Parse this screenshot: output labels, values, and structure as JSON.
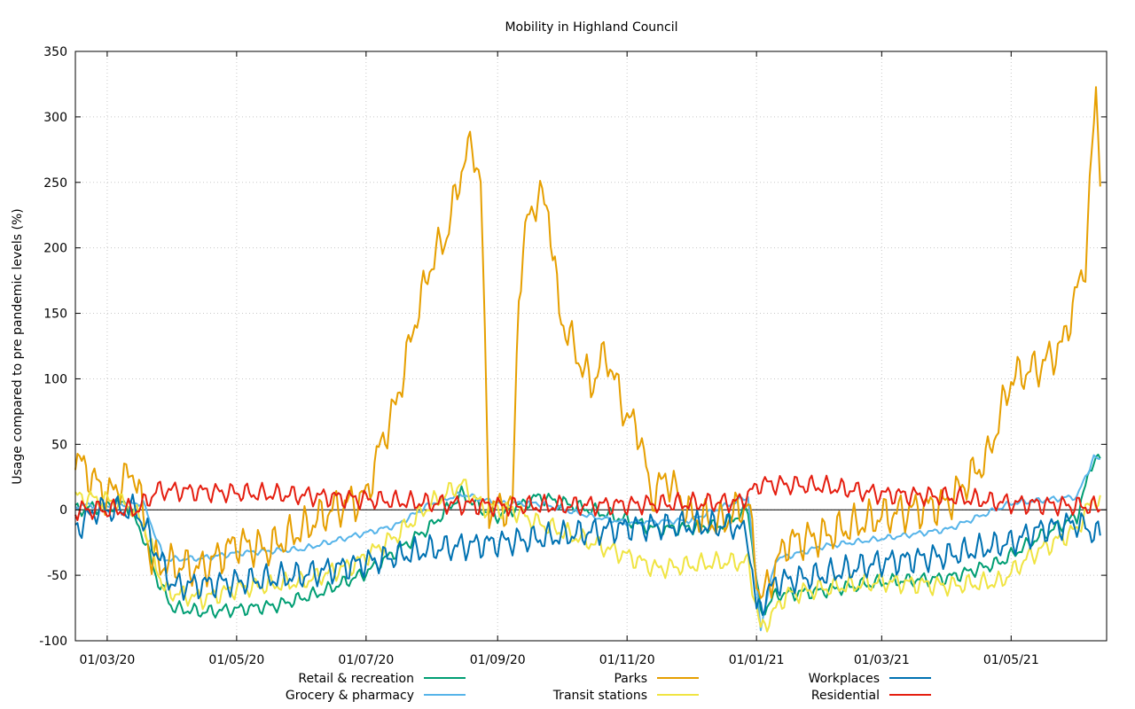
{
  "chart_data": {
    "type": "line",
    "title": "Mobility in Highland Council",
    "xlabel": "",
    "ylabel": "Usage compared to pre pandemic levels (%)",
    "x_range": [
      "2020-02-15",
      "2021-06-15"
    ],
    "x_ticks": [
      {
        "date": "2020-03-01",
        "label": "01/03/20"
      },
      {
        "date": "2020-05-01",
        "label": "01/05/20"
      },
      {
        "date": "2020-07-01",
        "label": "01/07/20"
      },
      {
        "date": "2020-09-01",
        "label": "01/09/20"
      },
      {
        "date": "2020-11-01",
        "label": "01/11/20"
      },
      {
        "date": "2021-01-01",
        "label": "01/01/21"
      },
      {
        "date": "2021-03-01",
        "label": "01/03/21"
      },
      {
        "date": "2021-05-01",
        "label": "01/05/21"
      }
    ],
    "ylim": [
      -100,
      350
    ],
    "y_ticks": [
      -100,
      -50,
      0,
      50,
      100,
      150,
      200,
      250,
      300,
      350
    ],
    "grid": true,
    "zero_line": true,
    "legend_position": "bottom",
    "series": [
      {
        "name": "Retail & recreation",
        "color": "#009e73",
        "weekly_amplitude": 7,
        "points": [
          [
            "2020-02-15",
            0
          ],
          [
            "2020-03-10",
            5
          ],
          [
            "2020-03-18",
            -20
          ],
          [
            "2020-03-25",
            -55
          ],
          [
            "2020-04-01",
            -75
          ],
          [
            "2020-04-15",
            -78
          ],
          [
            "2020-05-01",
            -76
          ],
          [
            "2020-05-20",
            -73
          ],
          [
            "2020-06-10",
            -63
          ],
          [
            "2020-07-01",
            -48
          ],
          [
            "2020-07-15",
            -32
          ],
          [
            "2020-08-01",
            -12
          ],
          [
            "2020-08-15",
            12
          ],
          [
            "2020-08-25",
            0
          ],
          [
            "2020-09-01",
            -5
          ],
          [
            "2020-09-20",
            10
          ],
          [
            "2020-10-15",
            0
          ],
          [
            "2020-11-01",
            -8
          ],
          [
            "2020-11-15",
            -15
          ],
          [
            "2020-12-15",
            -12
          ],
          [
            "2020-12-28",
            0
          ],
          [
            "2021-01-03",
            -80
          ],
          [
            "2021-01-10",
            -65
          ],
          [
            "2021-02-01",
            -62
          ],
          [
            "2021-03-01",
            -55
          ],
          [
            "2021-04-01",
            -52
          ],
          [
            "2021-04-26",
            -40
          ],
          [
            "2021-05-15",
            -20
          ],
          [
            "2021-06-01",
            -5
          ],
          [
            "2021-06-09",
            40
          ],
          [
            "2021-06-12",
            38
          ]
        ]
      },
      {
        "name": "Grocery & pharmacy",
        "color": "#56b4e9",
        "weekly_amplitude": 3,
        "points": [
          [
            "2020-02-15",
            3
          ],
          [
            "2020-03-10",
            5
          ],
          [
            "2020-03-18",
            5
          ],
          [
            "2020-03-28",
            -38
          ],
          [
            "2020-04-15",
            -37
          ],
          [
            "2020-05-01",
            -33
          ],
          [
            "2020-06-01",
            -30
          ],
          [
            "2020-06-25",
            -20
          ],
          [
            "2020-07-15",
            -12
          ],
          [
            "2020-08-01",
            5
          ],
          [
            "2020-08-15",
            12
          ],
          [
            "2020-09-01",
            5
          ],
          [
            "2020-09-20",
            5
          ],
          [
            "2020-10-15",
            -5
          ],
          [
            "2020-11-01",
            -10
          ],
          [
            "2020-12-01",
            -8
          ],
          [
            "2020-12-28",
            10
          ],
          [
            "2021-01-03",
            -90
          ],
          [
            "2021-01-10",
            -38
          ],
          [
            "2021-02-01",
            -28
          ],
          [
            "2021-03-01",
            -22
          ],
          [
            "2021-04-01",
            -15
          ],
          [
            "2021-05-01",
            5
          ],
          [
            "2021-06-01",
            10
          ],
          [
            "2021-06-09",
            40
          ],
          [
            "2021-06-12",
            38
          ]
        ]
      },
      {
        "name": "Parks",
        "color": "#e69f00",
        "weekly_amplitude": 20,
        "points": [
          [
            "2020-02-15",
            40
          ],
          [
            "2020-03-01",
            10
          ],
          [
            "2020-03-14",
            30
          ],
          [
            "2020-03-22",
            -40
          ],
          [
            "2020-04-15",
            -45
          ],
          [
            "2020-05-01",
            -25
          ],
          [
            "2020-05-15",
            -30
          ],
          [
            "2020-06-01",
            -15
          ],
          [
            "2020-06-15",
            0
          ],
          [
            "2020-07-01",
            10
          ],
          [
            "2020-07-08",
            50
          ],
          [
            "2020-07-15",
            80
          ],
          [
            "2020-07-25",
            150
          ],
          [
            "2020-08-01",
            190
          ],
          [
            "2020-08-08",
            210
          ],
          [
            "2020-08-15",
            260
          ],
          [
            "2020-08-20",
            280
          ],
          [
            "2020-08-24",
            250
          ],
          [
            "2020-08-28",
            2
          ],
          [
            "2020-09-08",
            2
          ],
          [
            "2020-09-11",
            170
          ],
          [
            "2020-09-15",
            220
          ],
          [
            "2020-09-20",
            240
          ],
          [
            "2020-09-25",
            230
          ],
          [
            "2020-09-30",
            150
          ],
          [
            "2020-10-08",
            120
          ],
          [
            "2020-10-15",
            95
          ],
          [
            "2020-10-22",
            120
          ],
          [
            "2020-10-27",
            95
          ],
          [
            "2020-11-01",
            70
          ],
          [
            "2020-11-07",
            60
          ],
          [
            "2020-11-12",
            10
          ],
          [
            "2020-11-20",
            25
          ],
          [
            "2020-12-01",
            -5
          ],
          [
            "2020-12-15",
            -10
          ],
          [
            "2020-12-28",
            5
          ],
          [
            "2021-01-03",
            -70
          ],
          [
            "2021-01-15",
            -25
          ],
          [
            "2021-02-01",
            -20
          ],
          [
            "2021-03-01",
            -5
          ],
          [
            "2021-04-01",
            5
          ],
          [
            "2021-04-20",
            40
          ],
          [
            "2021-05-01",
            100
          ],
          [
            "2021-05-15",
            110
          ],
          [
            "2021-05-25",
            125
          ],
          [
            "2021-06-05",
            190
          ],
          [
            "2021-06-10",
            320
          ],
          [
            "2021-06-12",
            262
          ]
        ]
      },
      {
        "name": "Transit stations",
        "color": "#f0e442",
        "weekly_amplitude": 10,
        "points": [
          [
            "2020-02-15",
            10
          ],
          [
            "2020-03-10",
            5
          ],
          [
            "2020-03-18",
            -10
          ],
          [
            "2020-03-28",
            -62
          ],
          [
            "2020-04-15",
            -68
          ],
          [
            "2020-05-01",
            -60
          ],
          [
            "2020-06-01",
            -55
          ],
          [
            "2020-06-25",
            -42
          ],
          [
            "2020-07-15",
            -20
          ],
          [
            "2020-08-01",
            5
          ],
          [
            "2020-08-15",
            20
          ],
          [
            "2020-08-25",
            2
          ],
          [
            "2020-09-08",
            0
          ],
          [
            "2020-09-20",
            -10
          ],
          [
            "2020-10-15",
            -25
          ],
          [
            "2020-11-01",
            -35
          ],
          [
            "2020-11-15",
            -45
          ],
          [
            "2020-12-15",
            -40
          ],
          [
            "2020-12-28",
            -40
          ],
          [
            "2021-01-03",
            -92
          ],
          [
            "2021-01-15",
            -65
          ],
          [
            "2021-02-01",
            -60
          ],
          [
            "2021-03-01",
            -55
          ],
          [
            "2021-04-01",
            -58
          ],
          [
            "2021-04-26",
            -55
          ],
          [
            "2021-05-10",
            -35
          ],
          [
            "2021-06-01",
            -15
          ],
          [
            "2021-06-09",
            10
          ],
          [
            "2021-06-12",
            5
          ]
        ]
      },
      {
        "name": "Workplaces",
        "color": "#0072b2",
        "weekly_amplitude": 14,
        "points": [
          [
            "2020-02-15",
            -15
          ],
          [
            "2020-02-25",
            0
          ],
          [
            "2020-03-15",
            0
          ],
          [
            "2020-03-22",
            -25
          ],
          [
            "2020-04-01",
            -58
          ],
          [
            "2020-04-15",
            -57
          ],
          [
            "2020-05-01",
            -55
          ],
          [
            "2020-06-01",
            -50
          ],
          [
            "2020-07-01",
            -40
          ],
          [
            "2020-08-01",
            -30
          ],
          [
            "2020-09-01",
            -25
          ],
          [
            "2020-10-01",
            -20
          ],
          [
            "2020-11-01",
            -13
          ],
          [
            "2020-12-01",
            -12
          ],
          [
            "2020-12-22",
            -12
          ],
          [
            "2020-12-28",
            -20
          ],
          [
            "2021-01-01",
            -78
          ],
          [
            "2021-01-10",
            -55
          ],
          [
            "2021-02-01",
            -50
          ],
          [
            "2021-03-01",
            -40
          ],
          [
            "2021-04-01",
            -35
          ],
          [
            "2021-05-01",
            -25
          ],
          [
            "2021-05-15",
            -15
          ],
          [
            "2021-06-01",
            -10
          ],
          [
            "2021-06-12",
            -20
          ]
        ]
      },
      {
        "name": "Residential",
        "color": "#e51e10",
        "weekly_amplitude": 10,
        "points": [
          [
            "2020-02-15",
            0
          ],
          [
            "2020-03-15",
            0
          ],
          [
            "2020-03-25",
            15
          ],
          [
            "2020-05-01",
            13
          ],
          [
            "2020-06-01",
            11
          ],
          [
            "2020-07-01",
            8
          ],
          [
            "2020-08-01",
            5
          ],
          [
            "2020-09-01",
            3
          ],
          [
            "2020-10-01",
            3
          ],
          [
            "2020-11-01",
            4
          ],
          [
            "2020-12-01",
            5
          ],
          [
            "2020-12-24",
            6
          ],
          [
            "2021-01-03",
            20
          ],
          [
            "2021-02-01",
            18
          ],
          [
            "2021-03-01",
            12
          ],
          [
            "2021-04-01",
            10
          ],
          [
            "2021-05-01",
            5
          ],
          [
            "2021-06-01",
            3
          ],
          [
            "2021-06-12",
            2
          ]
        ]
      }
    ]
  }
}
